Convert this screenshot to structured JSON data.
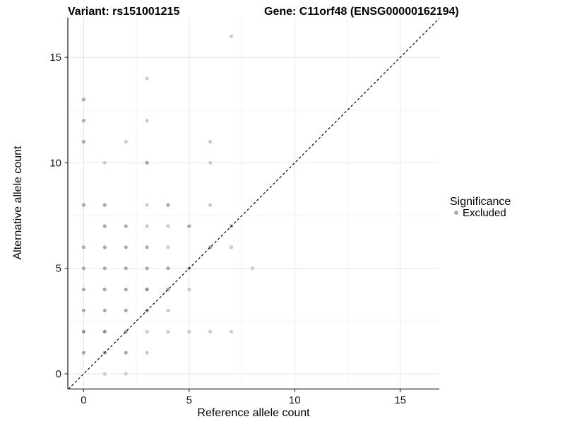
{
  "titles": {
    "variant": "Variant: rs151001215",
    "gene": "Gene: C11orf48 (ENSG00000162194)"
  },
  "legend": {
    "title": "Significance",
    "items": [
      {
        "label": "Excluded",
        "color": "#a9a9a9"
      }
    ]
  },
  "colors": {
    "background": "#ffffff",
    "grid_major": "#e5e5e5",
    "grid_minor": "#f2f2f2",
    "axis_line": "#404040",
    "tick_text": "#1a1a1a",
    "identity_line": "#000000",
    "point_levels": {
      "1": "#cbcbcb",
      "2": "#a9a9a9",
      "3": "#949494"
    }
  },
  "chart_data": {
    "type": "scatter",
    "title": "Variant: rs151001215  /  Gene: C11orf48 (ENSG00000162194)",
    "xlabel": "Reference allele count",
    "ylabel": "Alternative allele count",
    "xlim": [
      -0.75,
      16.85
    ],
    "ylim": [
      -0.72,
      16.88
    ],
    "x_major_ticks": [
      0,
      5,
      10,
      15
    ],
    "y_major_ticks": [
      0,
      5,
      10,
      15
    ],
    "x_minor_ticks": [
      2.5,
      7.5,
      12.5
    ],
    "y_minor_ticks": [
      2.5,
      7.5,
      12.5
    ],
    "grid": true,
    "legend_position": "right",
    "identity_line": {
      "style": "dashed",
      "equation": "y = x",
      "from": [
        -0.72,
        -0.72
      ],
      "to": [
        16.85,
        16.85
      ]
    },
    "series": [
      {
        "name": "Excluded",
        "note": "points are [reference_allele_count, alternative_allele_count, opacity_level 1=light 2=medium 3=dark]",
        "points": [
          [
            1,
            0,
            1
          ],
          [
            2,
            0,
            1
          ],
          [
            0,
            1,
            2
          ],
          [
            1,
            1,
            2
          ],
          [
            2,
            1,
            2
          ],
          [
            3,
            1,
            1
          ],
          [
            0,
            2,
            3
          ],
          [
            1,
            2,
            3
          ],
          [
            2,
            2,
            2
          ],
          [
            3,
            2,
            1
          ],
          [
            4,
            2,
            1
          ],
          [
            5,
            2,
            1
          ],
          [
            6,
            2,
            1
          ],
          [
            7,
            2,
            1
          ],
          [
            0,
            3,
            2
          ],
          [
            1,
            3,
            2
          ],
          [
            2,
            3,
            2
          ],
          [
            3,
            3,
            2
          ],
          [
            4,
            3,
            1
          ],
          [
            0,
            4,
            2
          ],
          [
            1,
            4,
            2
          ],
          [
            2,
            4,
            2
          ],
          [
            3,
            4,
            3
          ],
          [
            4,
            4,
            2
          ],
          [
            5,
            4,
            1
          ],
          [
            0,
            5,
            2
          ],
          [
            1,
            5,
            2
          ],
          [
            2,
            5,
            2
          ],
          [
            3,
            5,
            2
          ],
          [
            4,
            5,
            2
          ],
          [
            5,
            5,
            2
          ],
          [
            8,
            5,
            1
          ],
          [
            0,
            6,
            2
          ],
          [
            1,
            6,
            2
          ],
          [
            2,
            6,
            2
          ],
          [
            3,
            6,
            2
          ],
          [
            4,
            6,
            1
          ],
          [
            6,
            6,
            2
          ],
          [
            7,
            6,
            1
          ],
          [
            1,
            7,
            2
          ],
          [
            2,
            7,
            2
          ],
          [
            3,
            7,
            1
          ],
          [
            4,
            7,
            1
          ],
          [
            5,
            7,
            2
          ],
          [
            7,
            7,
            2
          ],
          [
            0,
            8,
            2
          ],
          [
            1,
            8,
            2
          ],
          [
            3,
            8,
            1
          ],
          [
            4,
            8,
            2
          ],
          [
            6,
            8,
            1
          ],
          [
            1,
            10,
            1
          ],
          [
            3,
            10,
            2
          ],
          [
            6,
            10,
            1
          ],
          [
            0,
            11,
            2
          ],
          [
            2,
            11,
            1
          ],
          [
            6,
            11,
            1
          ],
          [
            0,
            12,
            2
          ],
          [
            3,
            12,
            1
          ],
          [
            0,
            13,
            2
          ],
          [
            3,
            14,
            1
          ],
          [
            7,
            16,
            1
          ]
        ]
      }
    ]
  }
}
